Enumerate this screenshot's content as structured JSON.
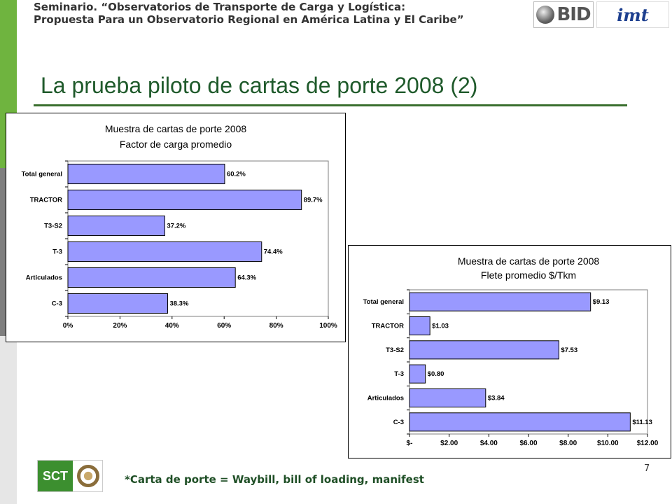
{
  "header": {
    "line1": "Seminario. “Observatorios de Transporte de Carga y Logística:",
    "line2": "Propuesta Para un Observatorio Regional en América Latina y El Caribe”"
  },
  "logos": {
    "bid": "BID",
    "imt": "imt",
    "sct": "SCT"
  },
  "slide": {
    "title": "La prueba piloto de cartas de porte 2008 (2)",
    "footnote": "*Carta de porte = Waybill, bill of loading, manifest",
    "page_number": "7"
  },
  "colors": {
    "bar_fill": "#9999ff",
    "bar_stroke": "#000000",
    "title_green": "#1f5a2b",
    "sidebar_green": "#6fb43f"
  },
  "chart_data": [
    {
      "type": "bar",
      "orientation": "horizontal",
      "title_line1": "Muestra de cartas de porte 2008",
      "title_line2": "Factor de carga promedio",
      "categories": [
        "Total general",
        "TRACTOR",
        "T3-S2",
        "T-3",
        "Articulados",
        "C-3"
      ],
      "values": [
        60.2,
        89.7,
        37.2,
        74.4,
        64.3,
        38.3
      ],
      "data_labels": [
        "60.2%",
        "89.7%",
        "37.2%",
        "74.4%",
        "64.3%",
        "38.3%"
      ],
      "xlim": [
        0,
        100
      ],
      "xticks": [
        0,
        20,
        40,
        60,
        80,
        100
      ],
      "xtick_labels": [
        "0%",
        "20%",
        "40%",
        "60%",
        "80%",
        "100%"
      ],
      "grid": false,
      "legend": "none"
    },
    {
      "type": "bar",
      "orientation": "horizontal",
      "title_line1": "Muestra de cartas de porte 2008",
      "title_line2": "Flete promedio $/Tkm",
      "categories": [
        "Total general",
        "TRACTOR",
        "T3-S2",
        "T-3",
        "Articulados",
        "C-3"
      ],
      "values": [
        9.13,
        1.03,
        7.53,
        0.8,
        3.84,
        11.13
      ],
      "data_labels": [
        "$9.13",
        "$1.03",
        "$7.53",
        "$0.80",
        "$3.84",
        "$11.13"
      ],
      "xlim": [
        0,
        12
      ],
      "xticks": [
        0,
        2,
        4,
        6,
        8,
        10,
        12
      ],
      "xtick_labels": [
        "$-",
        "$2.00",
        "$4.00",
        "$6.00",
        "$8.00",
        "$10.00",
        "$12.00"
      ],
      "grid": false,
      "legend": "none"
    }
  ]
}
